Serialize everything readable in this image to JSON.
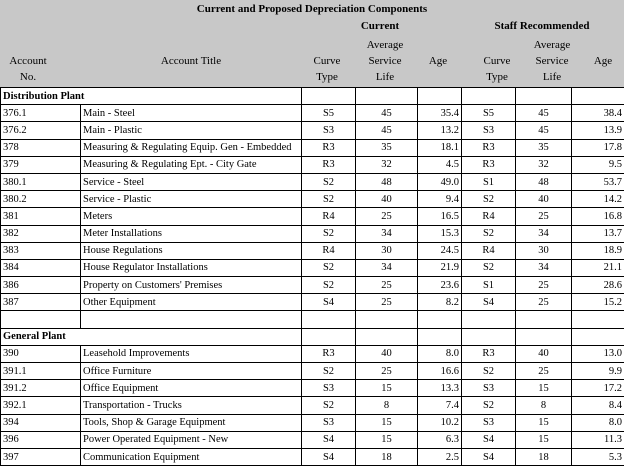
{
  "title": "Current and Proposed Depreciation Components",
  "groups": {
    "current": "Current",
    "staff": "Staff Recommended"
  },
  "columns": {
    "account_l1": "Account",
    "account_l2": "No.",
    "title": "Account Title",
    "curve_l1": "Curve",
    "curve_l2": "Type",
    "asl_l1": "Average",
    "asl_l2": "Service",
    "asl_l3": "Life",
    "age": "Age"
  },
  "sections": [
    {
      "name": "Distribution Plant",
      "rows": [
        {
          "acct": "376.1",
          "title": "Main - Steel",
          "c_curve": "S5",
          "c_life": "45",
          "c_age": "35.4",
          "s_curve": "S5",
          "s_life": "45",
          "s_age": "38.4"
        },
        {
          "acct": "376.2",
          "title": "Main - Plastic",
          "c_curve": "S3",
          "c_life": "45",
          "c_age": "13.2",
          "s_curve": "S3",
          "s_life": "45",
          "s_age": "13.9"
        },
        {
          "acct": "378",
          "title": "Measuring & Regulating Equip. Gen - Embedded",
          "c_curve": "R3",
          "c_life": "35",
          "c_age": "18.1",
          "s_curve": "R3",
          "s_life": "35",
          "s_age": "17.8"
        },
        {
          "acct": "379",
          "title": "Measuring & Regulating Ept. - City Gate",
          "c_curve": "R3",
          "c_life": "32",
          "c_age": "4.5",
          "s_curve": "R3",
          "s_life": "32",
          "s_age": "9.5"
        },
        {
          "acct": "380.1",
          "title": "Service - Steel",
          "c_curve": "S2",
          "c_life": "48",
          "c_age": "49.0",
          "s_curve": "S1",
          "s_life": "48",
          "s_age": "53.7"
        },
        {
          "acct": "380.2",
          "title": "Service - Plastic",
          "c_curve": "S2",
          "c_life": "40",
          "c_age": "9.4",
          "s_curve": "S2",
          "s_life": "40",
          "s_age": "14.2"
        },
        {
          "acct": "381",
          "title": "Meters",
          "c_curve": "R4",
          "c_life": "25",
          "c_age": "16.5",
          "s_curve": "R4",
          "s_life": "25",
          "s_age": "16.8"
        },
        {
          "acct": "382",
          "title": "Meter Installations",
          "c_curve": "S2",
          "c_life": "34",
          "c_age": "15.3",
          "s_curve": "S2",
          "s_life": "34",
          "s_age": "13.7"
        },
        {
          "acct": "383",
          "title": "House Regulations",
          "c_curve": "R4",
          "c_life": "30",
          "c_age": "24.5",
          "s_curve": "R4",
          "s_life": "30",
          "s_age": "18.9"
        },
        {
          "acct": "384",
          "title": "House Regulator Installations",
          "c_curve": "S2",
          "c_life": "34",
          "c_age": "21.9",
          "s_curve": "S2",
          "s_life": "34",
          "s_age": "21.1"
        },
        {
          "acct": "386",
          "title": "Property on Customers' Premises",
          "c_curve": "S2",
          "c_life": "25",
          "c_age": "23.6",
          "s_curve": "S1",
          "s_life": "25",
          "s_age": "28.6"
        },
        {
          "acct": "387",
          "title": "Other Equipment",
          "c_curve": "S4",
          "c_life": "25",
          "c_age": "8.2",
          "s_curve": "S4",
          "s_life": "25",
          "s_age": "15.2"
        }
      ]
    },
    {
      "name": "General Plant",
      "rows": [
        {
          "acct": "390",
          "title": "Leasehold Improvements",
          "c_curve": "R3",
          "c_life": "40",
          "c_age": "8.0",
          "s_curve": "R3",
          "s_life": "40",
          "s_age": "13.0"
        },
        {
          "acct": "391.1",
          "title": "Office Furniture",
          "c_curve": "S2",
          "c_life": "25",
          "c_age": "16.6",
          "s_curve": "S2",
          "s_life": "25",
          "s_age": "9.9"
        },
        {
          "acct": "391.2",
          "title": "Office Equipment",
          "c_curve": "S3",
          "c_life": "15",
          "c_age": "13.3",
          "s_curve": "S3",
          "s_life": "15",
          "s_age": "17.2"
        },
        {
          "acct": "392.1",
          "title": "Transportation - Trucks",
          "c_curve": "S2",
          "c_life": "8",
          "c_age": "7.4",
          "s_curve": "S2",
          "s_life": "8",
          "s_age": "8.4"
        },
        {
          "acct": "394",
          "title": "Tools, Shop & Garage Equipment",
          "c_curve": "S3",
          "c_life": "15",
          "c_age": "10.2",
          "s_curve": "S3",
          "s_life": "15",
          "s_age": "8.0"
        },
        {
          "acct": "396",
          "title": "Power Operated Equipment - New",
          "c_curve": "S4",
          "c_life": "15",
          "c_age": "6.3",
          "s_curve": "S4",
          "s_life": "15",
          "s_age": "11.3"
        },
        {
          "acct": "397",
          "title": "Communication Equipment",
          "c_curve": "S4",
          "c_life": "18",
          "c_age": "2.5",
          "s_curve": "S4",
          "s_life": "18",
          "s_age": "5.3"
        }
      ]
    }
  ]
}
